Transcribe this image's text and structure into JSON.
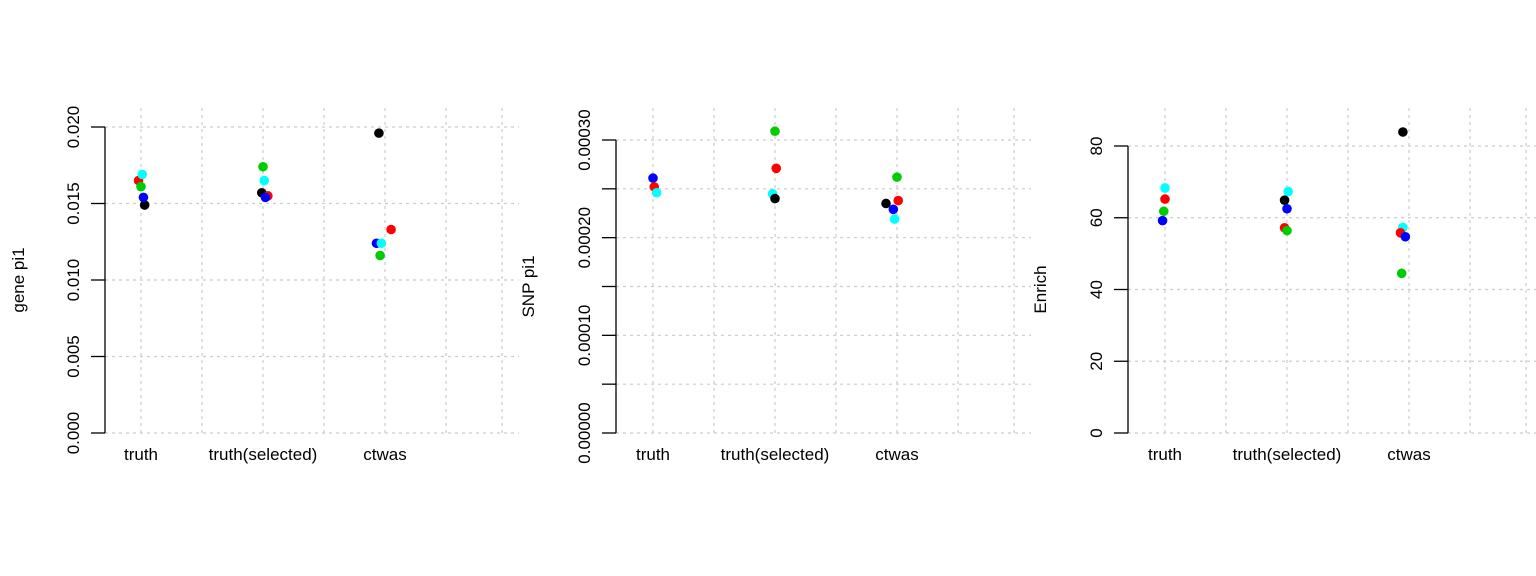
{
  "colors": {
    "black": "#000000",
    "red": "#ff0000",
    "green": "#00cd00",
    "blue": "#0000ff",
    "cyan": "#00ffff",
    "grid": "#cccccc"
  },
  "chart_data": [
    {
      "type": "scatter",
      "categories": [
        "truth",
        "truth(selected)",
        "ctwas"
      ],
      "ylabel": "gene pi1",
      "xlabel": "",
      "ylim": [
        0,
        0.02
      ],
      "yticks": [
        "0.000",
        "0.005",
        "0.010",
        "0.015",
        "0.020"
      ],
      "ytick_values": [
        0,
        0.005,
        0.01,
        0.015,
        0.02
      ],
      "grid": true,
      "points": [
        {
          "category": "truth",
          "jitter": -0.02,
          "value": 0.0165,
          "color": "red"
        },
        {
          "category": "truth",
          "jitter": 0.0,
          "value": 0.0161,
          "color": "green"
        },
        {
          "category": "truth",
          "jitter": 0.03,
          "value": 0.0149,
          "color": "black"
        },
        {
          "category": "truth",
          "jitter": 0.02,
          "value": 0.0154,
          "color": "blue"
        },
        {
          "category": "truth",
          "jitter": 0.01,
          "value": 0.0169,
          "color": "cyan"
        },
        {
          "category": "truth(selected)",
          "jitter": 0.0,
          "value": 0.0174,
          "color": "green"
        },
        {
          "category": "truth(selected)",
          "jitter": 0.01,
          "value": 0.0165,
          "color": "cyan"
        },
        {
          "category": "truth(selected)",
          "jitter": -0.01,
          "value": 0.0157,
          "color": "black"
        },
        {
          "category": "truth(selected)",
          "jitter": 0.04,
          "value": 0.0155,
          "color": "red"
        },
        {
          "category": "truth(selected)",
          "jitter": 0.02,
          "value": 0.0154,
          "color": "blue"
        },
        {
          "category": "ctwas",
          "jitter": -0.05,
          "value": 0.0196,
          "color": "black"
        },
        {
          "category": "ctwas",
          "jitter": 0.05,
          "value": 0.0133,
          "color": "red"
        },
        {
          "category": "ctwas",
          "jitter": -0.07,
          "value": 0.0124,
          "color": "blue"
        },
        {
          "category": "ctwas",
          "jitter": -0.03,
          "value": 0.0124,
          "color": "cyan"
        },
        {
          "category": "ctwas",
          "jitter": -0.04,
          "value": 0.0116,
          "color": "green"
        }
      ]
    },
    {
      "type": "scatter",
      "categories": [
        "truth",
        "truth(selected)",
        "ctwas"
      ],
      "ylabel": "SNP pi1",
      "xlabel": "",
      "ylim": [
        0,
        0.0003
      ],
      "yticks": [
        "0.00000",
        "0.00010",
        "0.00020",
        "0.00030"
      ],
      "ytick_values": [
        0,
        0.0001,
        0.0002,
        0.0003
      ],
      "minor_ytick_values": [
        5e-05,
        0.00015,
        0.00025
      ],
      "grid": true,
      "points": [
        {
          "category": "truth",
          "jitter": 0.0,
          "value": 0.000261,
          "color": "blue"
        },
        {
          "category": "truth",
          "jitter": 0.01,
          "value": 0.000252,
          "color": "red"
        },
        {
          "category": "truth",
          "jitter": 0.03,
          "value": 0.000246,
          "color": "cyan"
        },
        {
          "category": "truth(selected)",
          "jitter": 0.0,
          "value": 0.000309,
          "color": "green"
        },
        {
          "category": "truth(selected)",
          "jitter": 0.01,
          "value": 0.000271,
          "color": "red"
        },
        {
          "category": "truth(selected)",
          "jitter": -0.02,
          "value": 0.000245,
          "color": "cyan"
        },
        {
          "category": "truth(selected)",
          "jitter": 0.0,
          "value": 0.00024,
          "color": "black"
        },
        {
          "category": "ctwas",
          "jitter": -0.09,
          "value": 0.000235,
          "color": "black"
        },
        {
          "category": "ctwas",
          "jitter": 0.0,
          "value": 0.000262,
          "color": "green"
        },
        {
          "category": "ctwas",
          "jitter": 0.01,
          "value": 0.000238,
          "color": "red"
        },
        {
          "category": "ctwas",
          "jitter": -0.03,
          "value": 0.000229,
          "color": "blue"
        },
        {
          "category": "ctwas",
          "jitter": -0.02,
          "value": 0.000219,
          "color": "cyan"
        }
      ]
    },
    {
      "type": "scatter",
      "categories": [
        "truth",
        "truth(selected)",
        "ctwas"
      ],
      "ylabel": "Enrich",
      "xlabel": "",
      "ylim": [
        0,
        80
      ],
      "yticks": [
        "0",
        "20",
        "40",
        "60",
        "80"
      ],
      "ytick_values": [
        0,
        20,
        40,
        60,
        80
      ],
      "grid": true,
      "points": [
        {
          "category": "truth",
          "jitter": 0.0,
          "value": 68.3,
          "color": "cyan"
        },
        {
          "category": "truth",
          "jitter": 0.0,
          "value": 65.2,
          "color": "red"
        },
        {
          "category": "truth",
          "jitter": -0.01,
          "value": 61.8,
          "color": "green"
        },
        {
          "category": "truth",
          "jitter": -0.02,
          "value": 59.2,
          "color": "blue"
        },
        {
          "category": "truth(selected)",
          "jitter": 0.01,
          "value": 67.3,
          "color": "cyan"
        },
        {
          "category": "truth(selected)",
          "jitter": -0.02,
          "value": 64.9,
          "color": "black"
        },
        {
          "category": "truth(selected)",
          "jitter": 0.0,
          "value": 62.5,
          "color": "blue"
        },
        {
          "category": "truth(selected)",
          "jitter": -0.02,
          "value": 57.2,
          "color": "red"
        },
        {
          "category": "truth(selected)",
          "jitter": 0.0,
          "value": 56.4,
          "color": "green"
        },
        {
          "category": "ctwas",
          "jitter": -0.05,
          "value": 83.9,
          "color": "black"
        },
        {
          "category": "ctwas",
          "jitter": -0.05,
          "value": 57.3,
          "color": "cyan"
        },
        {
          "category": "ctwas",
          "jitter": -0.07,
          "value": 55.8,
          "color": "red"
        },
        {
          "category": "ctwas",
          "jitter": -0.03,
          "value": 54.7,
          "color": "blue"
        },
        {
          "category": "ctwas",
          "jitter": -0.06,
          "value": 44.5,
          "color": "green"
        }
      ]
    }
  ]
}
